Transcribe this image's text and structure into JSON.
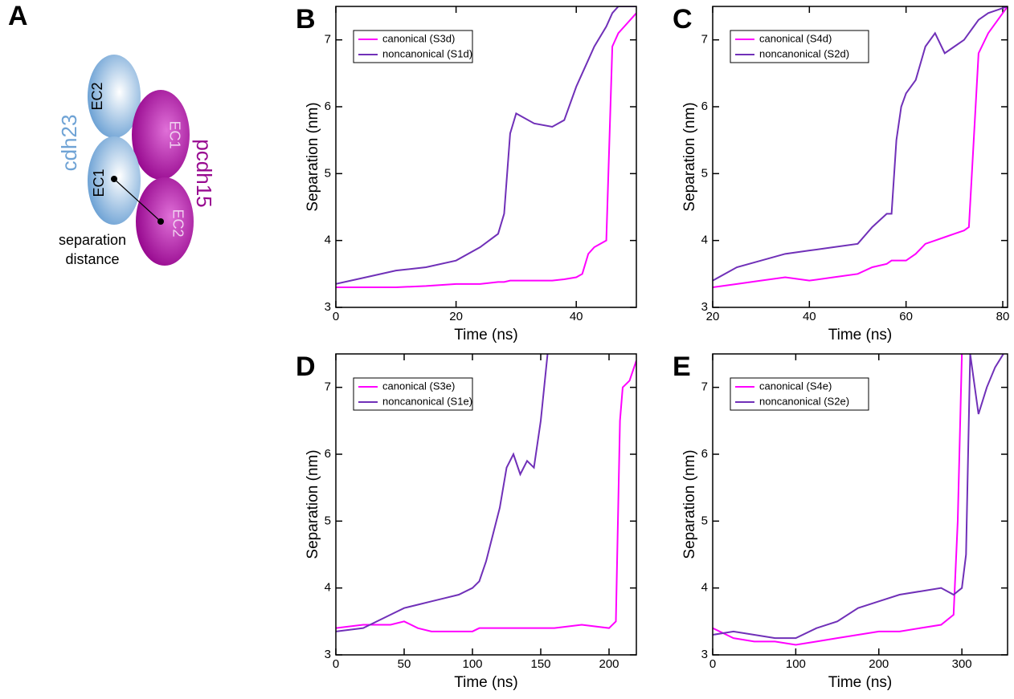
{
  "diagram": {
    "panel": "A",
    "cdh23": "cdh23",
    "pcdh15": "pcdh15",
    "cdh23_top": "EC2",
    "cdh23_bottom": "EC1",
    "pcdh15_top": "EC1",
    "pcdh15_bottom": "EC2",
    "caption": [
      "separation",
      "distance"
    ]
  },
  "chart_data": [
    {
      "type": "line",
      "panel": "B",
      "xlabel": "Time (ns)",
      "ylabel": "Separation (nm)",
      "x": [
        0,
        5,
        10,
        15,
        20,
        24,
        27,
        28,
        29,
        30,
        33,
        36,
        38,
        40,
        41,
        42,
        43,
        45,
        46,
        47,
        48,
        50
      ],
      "series": [
        {
          "name": "canonical (S3d)",
          "color": "#ff00ff",
          "values": [
            3.3,
            3.3,
            3.3,
            3.32,
            3.35,
            3.35,
            3.38,
            3.38,
            3.4,
            3.4,
            3.4,
            3.4,
            3.42,
            3.45,
            3.5,
            3.8,
            3.9,
            4.0,
            6.9,
            7.1,
            7.2,
            7.4
          ]
        },
        {
          "name": "noncanonical (S1d)",
          "color": "#7030b8",
          "values": [
            3.35,
            3.45,
            3.55,
            3.6,
            3.7,
            3.9,
            4.1,
            4.4,
            5.6,
            5.9,
            5.75,
            5.7,
            5.8,
            6.3,
            6.5,
            6.7,
            6.9,
            7.2,
            7.4,
            7.5,
            7.5,
            7.5
          ]
        }
      ],
      "xlim": [
        0,
        50
      ],
      "xticks": [
        0,
        20,
        40
      ],
      "ylim": [
        3,
        7.5
      ],
      "yticks": [
        3,
        4,
        5,
        6,
        7
      ]
    },
    {
      "type": "line",
      "panel": "C",
      "xlabel": "Time (ns)",
      "ylabel": "Separation (nm)",
      "x": [
        20,
        25,
        30,
        35,
        40,
        45,
        50,
        53,
        56,
        57,
        58,
        59,
        60,
        62,
        64,
        66,
        68,
        70,
        72,
        73,
        74,
        75,
        77,
        79,
        81
      ],
      "series": [
        {
          "name": "canonical (S4d)",
          "color": "#ff00ff",
          "values": [
            3.3,
            3.35,
            3.4,
            3.45,
            3.4,
            3.45,
            3.5,
            3.6,
            3.65,
            3.7,
            3.7,
            3.7,
            3.7,
            3.8,
            3.95,
            4.0,
            4.05,
            4.1,
            4.15,
            4.2,
            5.5,
            6.8,
            7.1,
            7.3,
            7.5
          ]
        },
        {
          "name": "noncanonical (S2d)",
          "color": "#7030b8",
          "values": [
            3.4,
            3.6,
            3.7,
            3.8,
            3.85,
            3.9,
            3.95,
            4.2,
            4.4,
            4.4,
            5.5,
            6.0,
            6.2,
            6.4,
            6.9,
            7.1,
            6.8,
            6.9,
            7.0,
            7.1,
            7.2,
            7.3,
            7.4,
            7.45,
            7.5
          ]
        }
      ],
      "xlim": [
        20,
        81
      ],
      "xticks": [
        20,
        40,
        60,
        80
      ],
      "ylim": [
        3,
        7.5
      ],
      "yticks": [
        3,
        4,
        5,
        6,
        7
      ]
    },
    {
      "type": "line",
      "panel": "D",
      "xlabel": "Time (ns)",
      "ylabel": "Separation (nm)",
      "x": [
        0,
        20,
        40,
        50,
        60,
        70,
        80,
        90,
        100,
        105,
        110,
        115,
        120,
        125,
        130,
        135,
        140,
        145,
        150,
        155,
        160,
        180,
        200,
        205,
        208,
        210,
        215,
        220
      ],
      "series": [
        {
          "name": "canonical (S3e)",
          "color": "#ff00ff",
          "values": [
            3.4,
            3.45,
            3.45,
            3.5,
            3.4,
            3.35,
            3.35,
            3.35,
            3.35,
            3.4,
            3.4,
            3.4,
            3.4,
            3.4,
            3.4,
            3.4,
            3.4,
            3.4,
            3.4,
            3.4,
            3.4,
            3.45,
            3.4,
            3.5,
            6.5,
            7.0,
            7.1,
            7.4
          ]
        },
        {
          "name": "noncanonical (S1e)",
          "color": "#7030b8",
          "values": [
            3.35,
            3.4,
            3.6,
            3.7,
            3.75,
            3.8,
            3.85,
            3.9,
            4.0,
            4.1,
            4.4,
            4.8,
            5.2,
            5.8,
            6.0,
            5.7,
            5.9,
            5.8,
            6.5,
            7.5,
            null,
            null,
            null,
            null,
            null,
            null,
            null,
            null
          ]
        }
      ],
      "xlim": [
        0,
        220
      ],
      "xticks": [
        0,
        50,
        100,
        150,
        200
      ],
      "ylim": [
        3,
        7.5
      ],
      "yticks": [
        3,
        4,
        5,
        6,
        7
      ]
    },
    {
      "type": "line",
      "panel": "E",
      "xlabel": "Time (ns)",
      "ylabel": "Separation (nm)",
      "x": [
        0,
        25,
        50,
        75,
        100,
        125,
        150,
        175,
        200,
        225,
        250,
        275,
        290,
        295,
        300,
        305,
        310,
        320,
        330,
        340,
        350
      ],
      "series": [
        {
          "name": "canonical (S4e)",
          "color": "#ff00ff",
          "values": [
            3.4,
            3.25,
            3.2,
            3.2,
            3.15,
            3.2,
            3.25,
            3.3,
            3.35,
            3.35,
            3.4,
            3.45,
            3.6,
            5.0,
            7.5,
            null,
            null,
            null,
            null,
            null,
            null
          ]
        },
        {
          "name": "noncanonical (S2e)",
          "color": "#7030b8",
          "values": [
            3.3,
            3.35,
            3.3,
            3.25,
            3.25,
            3.4,
            3.5,
            3.7,
            3.8,
            3.9,
            3.95,
            4.0,
            3.9,
            3.95,
            4.0,
            4.5,
            7.5,
            6.6,
            7.0,
            7.3,
            7.5
          ]
        }
      ],
      "xlim": [
        0,
        355
      ],
      "xticks": [
        0,
        100,
        200,
        300
      ],
      "ylim": [
        3,
        7.5
      ],
      "yticks": [
        3,
        4,
        5,
        6,
        7
      ]
    }
  ]
}
